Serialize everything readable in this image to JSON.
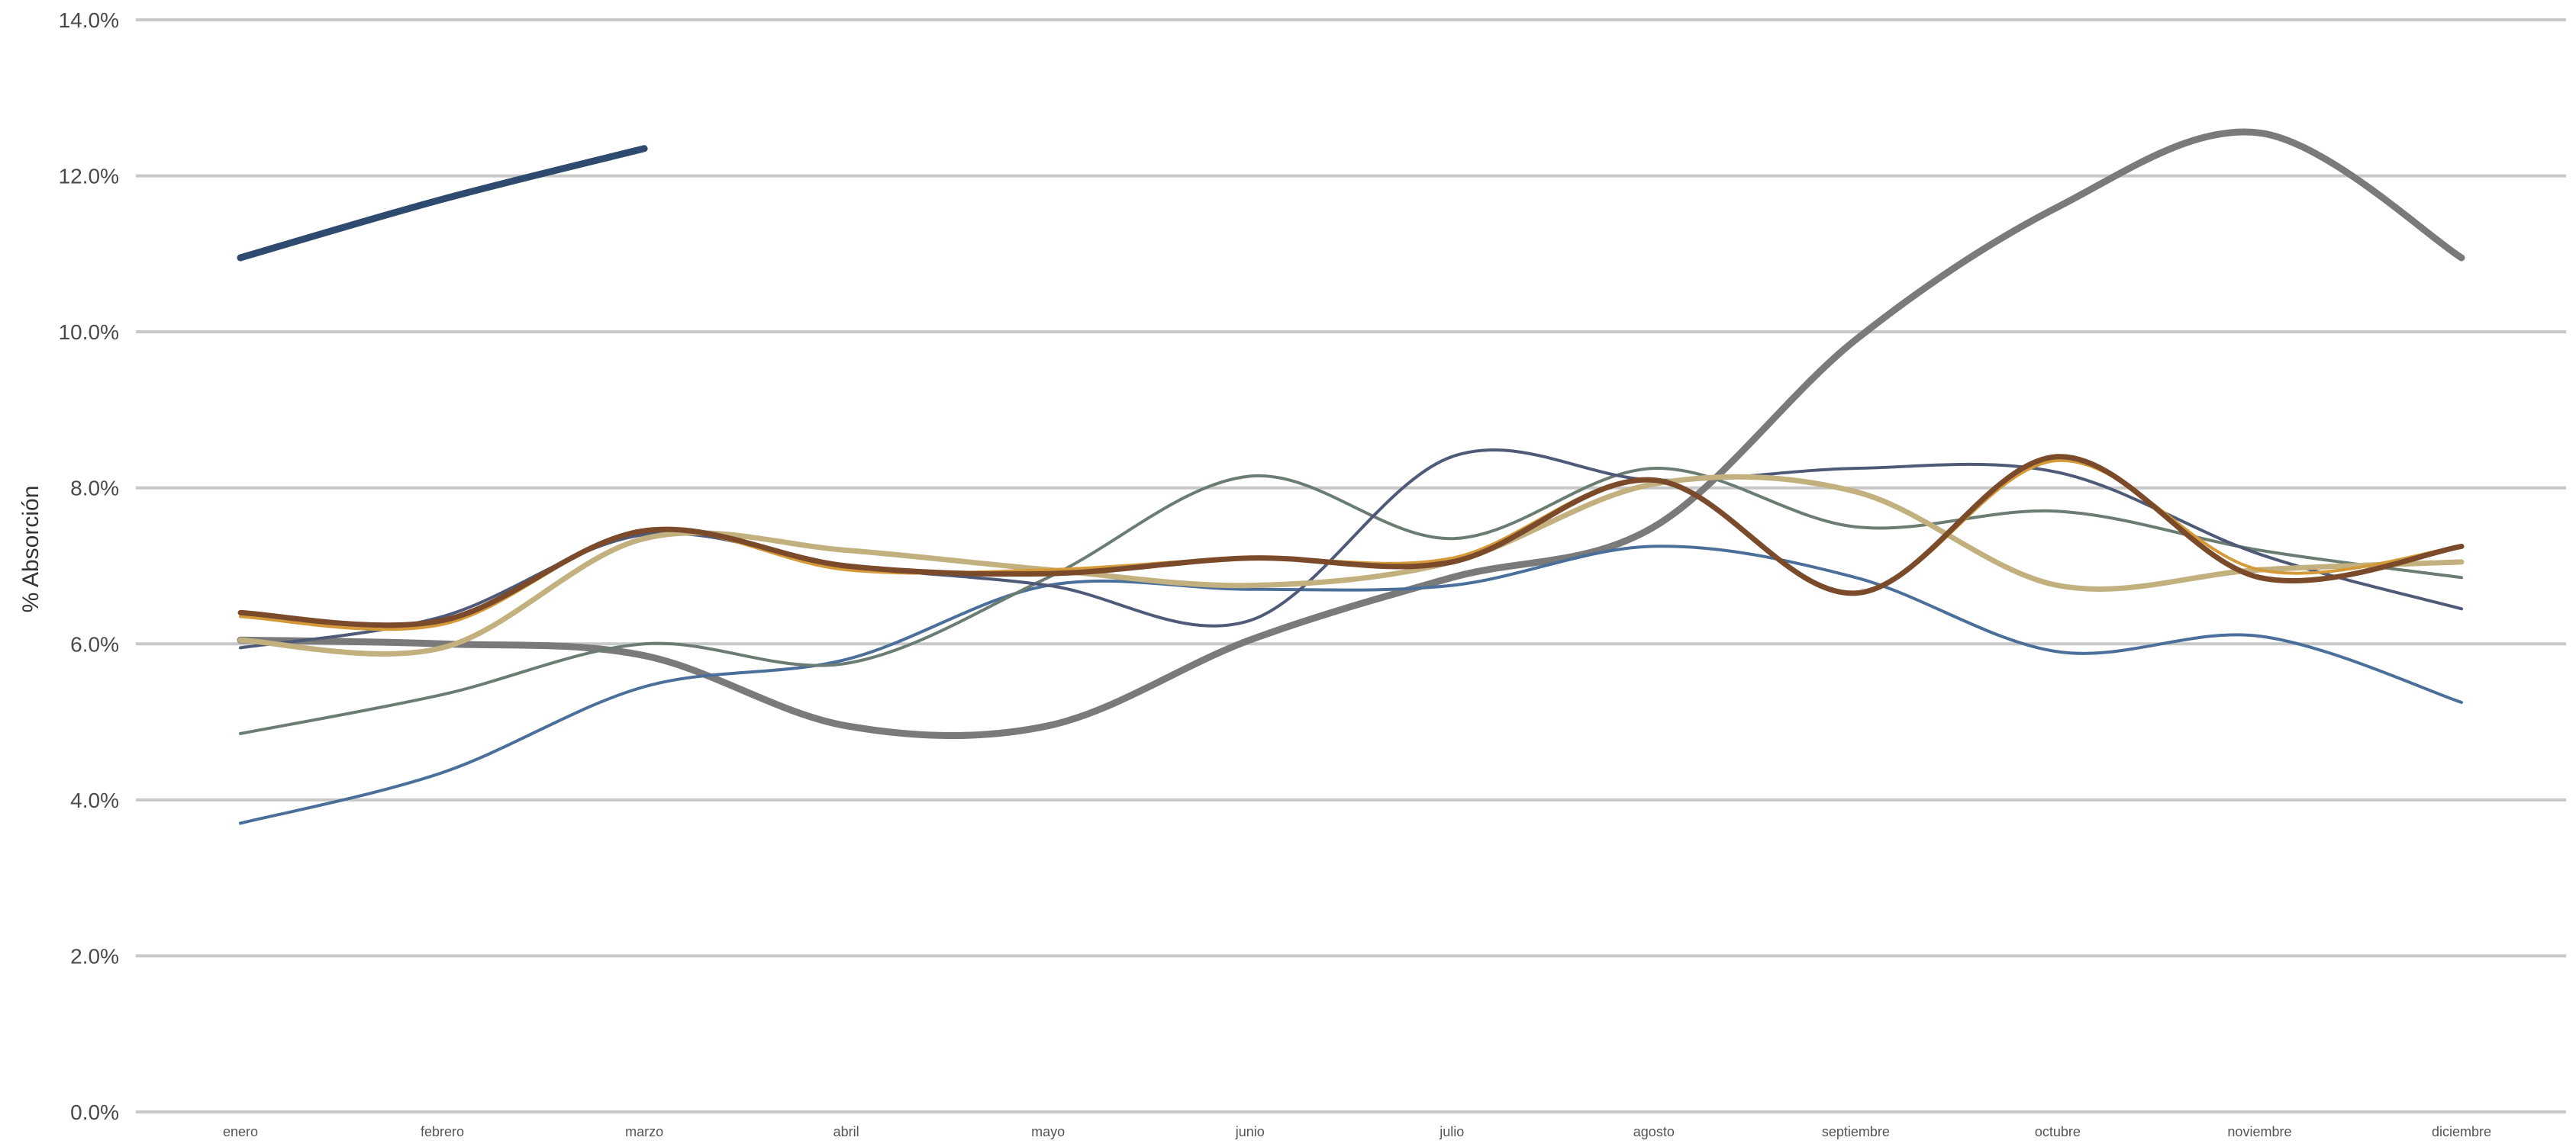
{
  "chart_data": {
    "type": "line",
    "title": "",
    "xlabel": "",
    "ylabel": "% Absorción",
    "ylim": [
      0,
      14
    ],
    "yticks": [
      0,
      2,
      4,
      6,
      8,
      10,
      12,
      14
    ],
    "ytick_labels": [
      "0.0%",
      "2.0%",
      "4.0%",
      "6.0%",
      "8.0%",
      "10.0%",
      "12.0%",
      "14.0%"
    ],
    "grid": "horizontal",
    "legend": "none",
    "curve": "smooth",
    "categories": [
      "enero",
      "febrero",
      "marzo",
      "abril",
      "mayo",
      "junio",
      "julio",
      "agosto",
      "septiembre",
      "octubre",
      "noviembre",
      "diciembre"
    ],
    "series": [
      {
        "color": "#2e4a6e",
        "width": "thick",
        "values": [
          10.95,
          11.7,
          12.35,
          null,
          null,
          null,
          null,
          null,
          null,
          null,
          null,
          null
        ]
      },
      {
        "color": "#7a7a7a",
        "width": "thick",
        "values": [
          6.05,
          6.0,
          5.85,
          4.95,
          4.95,
          6.05,
          6.85,
          7.5,
          9.9,
          11.6,
          12.55,
          10.95
        ]
      },
      {
        "color": "#4a6f9a",
        "width": "thin",
        "values": [
          3.7,
          4.35,
          5.45,
          5.8,
          6.75,
          6.7,
          6.75,
          7.25,
          6.85,
          5.9,
          6.1,
          5.25
        ]
      },
      {
        "color": "#6b7d72",
        "width": "thin",
        "values": [
          4.85,
          5.35,
          6.0,
          5.75,
          6.85,
          8.15,
          7.35,
          8.25,
          7.5,
          7.7,
          7.2,
          6.85
        ]
      },
      {
        "color": "#4e5a78",
        "width": "thin",
        "values": [
          5.95,
          6.35,
          7.4,
          7.0,
          6.75,
          6.3,
          8.4,
          8.1,
          8.25,
          8.2,
          7.15,
          6.45
        ]
      },
      {
        "color": "#c2b07e",
        "width": "medium",
        "values": [
          6.05,
          5.95,
          7.35,
          7.2,
          6.95,
          6.75,
          7.05,
          8.05,
          7.95,
          6.75,
          6.95,
          7.05
        ]
      },
      {
        "color": "#d49a3a",
        "width": "thin",
        "values": [
          6.35,
          6.25,
          7.45,
          6.95,
          6.95,
          7.1,
          7.1,
          8.1,
          6.65,
          8.35,
          6.95,
          7.25
        ]
      },
      {
        "color": "#7a4a2a",
        "width": "medium",
        "values": [
          6.4,
          6.3,
          7.45,
          7.0,
          6.9,
          7.1,
          7.05,
          8.1,
          6.65,
          8.4,
          6.85,
          7.25
        ]
      }
    ]
  }
}
